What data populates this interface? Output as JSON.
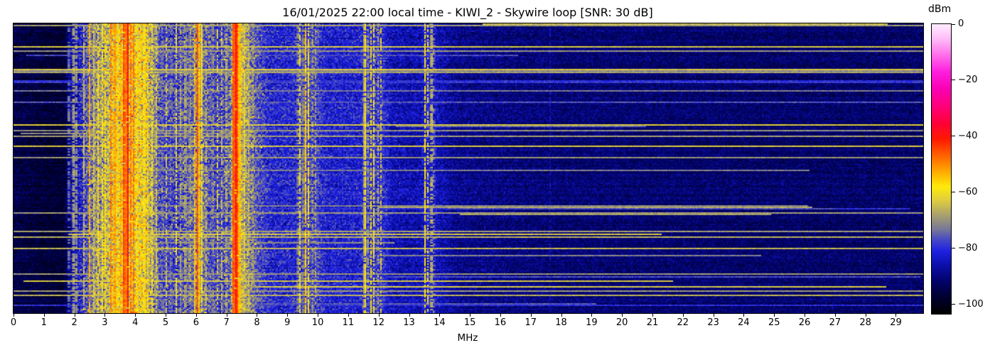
{
  "chart_data": {
    "type": "heatmap",
    "title": "16/01/2025 22:00 local time - KIWI_2 - Skywire loop [SNR: 30 dB]",
    "xlabel": "MHz",
    "ylabel": "",
    "x_range": [
      0,
      29.9
    ],
    "x_ticks": [
      0,
      1,
      2,
      3,
      4,
      5,
      6,
      7,
      8,
      9,
      10,
      11,
      12,
      13,
      14,
      15,
      16,
      17,
      18,
      19,
      20,
      21,
      22,
      23,
      24,
      25,
      26,
      27,
      28,
      29
    ],
    "y_axis": "time (waterfall rows, no labels shown)",
    "grid": false,
    "colorbar": {
      "label": "dBm",
      "position": "right",
      "vmax": 0,
      "vmin": -103.3,
      "tick_values": [
        0,
        -20,
        -40,
        -60,
        -80,
        -100
      ],
      "tick_labels": [
        "0",
        "−20",
        "−40",
        "−60",
        "−80",
        "−100"
      ]
    },
    "colormap_stops": [
      [
        0,
        [
          255,
          236,
          255
        ]
      ],
      [
        -5,
        [
          255,
          190,
          248
        ]
      ],
      [
        -11,
        [
          255,
          110,
          235
        ]
      ],
      [
        -17,
        [
          255,
          30,
          222
        ]
      ],
      [
        -23,
        [
          250,
          0,
          180
        ]
      ],
      [
        -29,
        [
          255,
          0,
          125
        ]
      ],
      [
        -35,
        [
          255,
          0,
          60
        ]
      ],
      [
        -41,
        [
          255,
          25,
          0
        ]
      ],
      [
        -47,
        [
          255,
          100,
          0
        ]
      ],
      [
        -53,
        [
          255,
          175,
          0
        ]
      ],
      [
        -58,
        [
          255,
          235,
          10
        ]
      ],
      [
        -63,
        [
          222,
          205,
          65
        ]
      ],
      [
        -68,
        [
          170,
          162,
          108
        ]
      ],
      [
        -73,
        [
          122,
          122,
          150
        ]
      ],
      [
        -77,
        [
          70,
          72,
          198
        ]
      ],
      [
        -81,
        [
          30,
          34,
          226
        ]
      ],
      [
        -86,
        [
          12,
          15,
          170
        ]
      ],
      [
        -91,
        [
          3,
          4,
          115
        ]
      ],
      [
        -96,
        [
          0,
          0,
          62
        ]
      ],
      [
        -103.3,
        [
          0,
          0,
          0
        ]
      ]
    ],
    "noise_floor_profile": [
      [
        0.0,
        -95,
        4.5
      ],
      [
        0.6,
        -96,
        4.5
      ],
      [
        1.2,
        -97,
        4
      ],
      [
        1.65,
        -97,
        4
      ],
      [
        1.85,
        -89,
        6
      ],
      [
        2.1,
        -84,
        7
      ],
      [
        2.35,
        -78,
        8.5
      ],
      [
        2.6,
        -72,
        9.5
      ],
      [
        3.0,
        -68,
        10
      ],
      [
        3.2,
        -64,
        10.5
      ],
      [
        3.6,
        -60,
        11
      ],
      [
        4.0,
        -61,
        11
      ],
      [
        4.35,
        -64,
        10.5
      ],
      [
        4.6,
        -70,
        9.5
      ],
      [
        4.85,
        -77,
        8.5
      ],
      [
        5.4,
        -78,
        8.5
      ],
      [
        5.8,
        -75,
        8.5
      ],
      [
        6.1,
        -71,
        9
      ],
      [
        6.35,
        -75,
        8.5
      ],
      [
        6.7,
        -78,
        8
      ],
      [
        7.1,
        -76,
        8
      ],
      [
        7.2,
        -64,
        9
      ],
      [
        7.33,
        -60,
        9
      ],
      [
        7.47,
        -65,
        9
      ],
      [
        7.7,
        -70,
        8.5
      ],
      [
        8.0,
        -76,
        7.5
      ],
      [
        8.45,
        -81,
        6.5
      ],
      [
        9.25,
        -81,
        6.5
      ],
      [
        9.5,
        -77,
        7
      ],
      [
        9.95,
        -78,
        7
      ],
      [
        10.3,
        -82,
        6
      ],
      [
        11.35,
        -82,
        6
      ],
      [
        11.6,
        -78,
        6.5
      ],
      [
        12.1,
        -79,
        6.5
      ],
      [
        12.45,
        -85,
        5.5
      ],
      [
        13.35,
        -86,
        5
      ],
      [
        13.6,
        -81,
        6
      ],
      [
        13.95,
        -85,
        5
      ],
      [
        14.6,
        -89,
        4.5
      ],
      [
        16.0,
        -90,
        4.5
      ],
      [
        18.0,
        -91,
        4.2
      ],
      [
        21.0,
        -91.5,
        4
      ],
      [
        25.0,
        -92,
        4
      ],
      [
        29.9,
        -92,
        4
      ]
    ],
    "carriers": [
      [
        1.82,
        -66,
        0.025,
        0.55
      ],
      [
        1.97,
        -62,
        0.025,
        0.8
      ],
      [
        2.06,
        -63,
        0.02,
        0.7
      ],
      [
        2.32,
        -62,
        0.03,
        0.7
      ],
      [
        2.5,
        -53,
        0.035,
        0.85
      ],
      [
        2.65,
        -60,
        0.03,
        0.7
      ],
      [
        2.78,
        -57,
        0.03,
        0.75
      ],
      [
        2.92,
        -59,
        0.03,
        0.7
      ],
      [
        3.02,
        -56,
        0.03,
        0.7
      ],
      [
        3.2,
        -49,
        0.04,
        0.85
      ],
      [
        3.32,
        -44,
        0.04,
        0.9
      ],
      [
        3.42,
        -52,
        0.03,
        0.8
      ],
      [
        3.52,
        -50,
        0.03,
        0.8
      ],
      [
        3.64,
        -38,
        0.03,
        0.95
      ],
      [
        3.75,
        -35,
        0.035,
        0.97
      ],
      [
        3.86,
        -46,
        0.03,
        0.85
      ],
      [
        3.95,
        -48,
        0.04,
        0.85
      ],
      [
        4.06,
        -52,
        0.03,
        0.8
      ],
      [
        4.18,
        -55,
        0.03,
        0.75
      ],
      [
        4.3,
        -50,
        0.04,
        0.8
      ],
      [
        4.42,
        -54,
        0.03,
        0.75
      ],
      [
        4.55,
        -58,
        0.03,
        0.7
      ],
      [
        4.7,
        -62,
        0.025,
        0.6
      ],
      [
        4.9,
        -66,
        0.02,
        0.5
      ],
      [
        5.02,
        -63,
        0.025,
        0.6
      ],
      [
        5.18,
        -66,
        0.02,
        0.5
      ],
      [
        5.35,
        -61,
        0.03,
        0.65
      ],
      [
        5.5,
        -63,
        0.025,
        0.6
      ],
      [
        5.65,
        -60,
        0.03,
        0.65
      ],
      [
        5.8,
        -62,
        0.025,
        0.6
      ],
      [
        5.95,
        -52,
        0.03,
        0.8
      ],
      [
        6.06,
        -42,
        0.04,
        0.93
      ],
      [
        6.18,
        -54,
        0.03,
        0.8
      ],
      [
        6.32,
        -62,
        0.025,
        0.6
      ],
      [
        6.55,
        -64,
        0.02,
        0.5
      ],
      [
        6.7,
        -61,
        0.025,
        0.6
      ],
      [
        6.85,
        -63,
        0.02,
        0.55
      ],
      [
        7.0,
        -60,
        0.025,
        0.65
      ],
      [
        7.23,
        -42,
        0.04,
        0.95
      ],
      [
        7.3,
        -34,
        0.04,
        0.97
      ],
      [
        7.37,
        -41,
        0.035,
        0.95
      ],
      [
        7.44,
        -50,
        0.03,
        0.85
      ],
      [
        7.58,
        -58,
        0.03,
        0.7
      ],
      [
        7.72,
        -61,
        0.025,
        0.6
      ],
      [
        7.88,
        -64,
        0.02,
        0.5
      ],
      [
        9.35,
        -62,
        0.02,
        0.55
      ],
      [
        9.42,
        -58,
        0.022,
        0.7
      ],
      [
        9.53,
        -63,
        0.02,
        0.5
      ],
      [
        9.6,
        -55,
        0.025,
        0.85
      ],
      [
        9.7,
        -56,
        0.025,
        0.8
      ],
      [
        9.82,
        -63,
        0.02,
        0.5
      ],
      [
        9.92,
        -65,
        0.02,
        0.45
      ],
      [
        10.0,
        -68,
        0.02,
        0.4
      ],
      [
        11.55,
        -55,
        0.025,
        0.85
      ],
      [
        11.64,
        -63,
        0.02,
        0.5
      ],
      [
        11.75,
        -60,
        0.022,
        0.65
      ],
      [
        11.85,
        -58,
        0.022,
        0.7
      ],
      [
        11.99,
        -64,
        0.02,
        0.5
      ],
      [
        12.08,
        -62,
        0.02,
        0.55
      ],
      [
        13.52,
        -57,
        0.025,
        0.8
      ],
      [
        13.62,
        -60,
        0.022,
        0.6
      ],
      [
        13.74,
        -59,
        0.022,
        0.65
      ],
      [
        13.82,
        -66,
        0.02,
        0.4
      ],
      [
        17.65,
        -80,
        0.02,
        0.6
      ]
    ],
    "impulse_lines": {
      "count": 46,
      "strongest_dbm": -63,
      "weakest_dbm": -80,
      "full_width_fraction": 0.55
    },
    "render": {
      "seed": 20250116,
      "rows": 204,
      "cols": 640,
      "cell": 2,
      "row_jitter_db": 1.5,
      "speckle_prob": 0.02
    }
  }
}
